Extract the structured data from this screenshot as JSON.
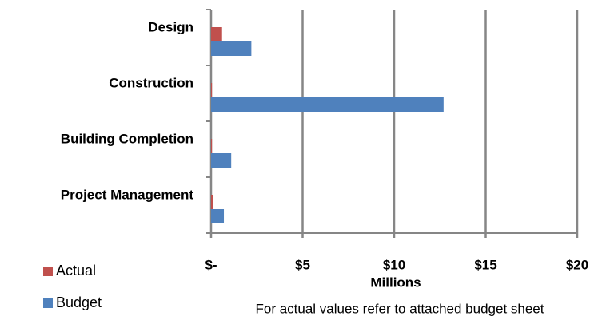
{
  "chart_data": {
    "type": "hbar",
    "categories": [
      "Design",
      "Construction",
      "Building Completion",
      "Project Management"
    ],
    "series": [
      {
        "name": "Actual",
        "color": "#c0504d",
        "values": [
          0.6,
          0.05,
          0.05,
          0.1
        ]
      },
      {
        "name": "Budget",
        "color": "#4f81bd",
        "values": [
          2.2,
          12.7,
          1.1,
          0.7
        ]
      }
    ],
    "xlim": [
      0,
      20
    ],
    "xticks": [
      {
        "value": 0,
        "label": "$-"
      },
      {
        "value": 5,
        "label": "$5"
      },
      {
        "value": 10,
        "label": "$10"
      },
      {
        "value": 15,
        "label": "$15"
      },
      {
        "value": 20,
        "label": "$20"
      }
    ],
    "xlabel": "Millions",
    "note": "For actual values refer to attached budget sheet",
    "grid": true,
    "legend": "bottom-left"
  }
}
